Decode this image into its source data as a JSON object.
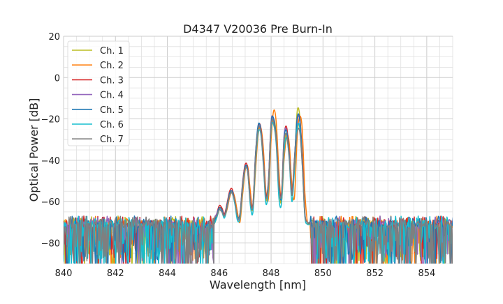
{
  "chart_data": {
    "type": "line",
    "title": "D4347 V20036 Pre Burn-In",
    "xlabel": "Wavelength [nm]",
    "ylabel": "Optical Power [dB]",
    "xlim": [
      840,
      855
    ],
    "ylim": [
      -90,
      20
    ],
    "xticks": [
      840,
      842,
      844,
      846,
      848,
      850,
      852,
      854
    ],
    "yticks": [
      20,
      0,
      -20,
      -40,
      -60,
      -80
    ],
    "grid": true,
    "minor_grid": true,
    "legend_placement": "top-left",
    "noise_floor_db": -70,
    "x": [
      845.8,
      845.9,
      846.0,
      846.1,
      846.2,
      846.3,
      846.4,
      846.5,
      846.6,
      846.7,
      846.8,
      846.9,
      847.0,
      847.1,
      847.2,
      847.3,
      847.4,
      847.5,
      847.6,
      847.7,
      847.8,
      847.9,
      848.0,
      848.1,
      848.2,
      848.3,
      848.4,
      848.5,
      848.6,
      848.7,
      848.8,
      848.9,
      849.0,
      849.1,
      849.2,
      849.3,
      849.4,
      849.5
    ],
    "series": [
      {
        "name": "Ch. 1",
        "color": "#bcbd22",
        "values": [
          -70,
          -67,
          -63,
          -64,
          -67,
          -62,
          -57,
          -55,
          -60,
          -68,
          -67,
          -53,
          -44,
          -45,
          -60,
          -63,
          -40,
          -26,
          -25,
          -40,
          -59,
          -52,
          -24,
          -20,
          -28,
          -52,
          -60,
          -34,
          -27,
          -37,
          -57,
          -42,
          -17,
          -18,
          -38,
          -66,
          -70,
          -71
        ]
      },
      {
        "name": "Ch. 2",
        "color": "#ff7f0e",
        "values": [
          -71,
          -68,
          -64,
          -63,
          -67,
          -64,
          -58,
          -55,
          -58,
          -65,
          -70,
          -57,
          -45,
          -43,
          -55,
          -64,
          -45,
          -28,
          -24,
          -34,
          -55,
          -58,
          -30,
          -16,
          -22,
          -45,
          -60,
          -40,
          -28,
          -32,
          -52,
          -58,
          -30,
          -19,
          -25,
          -55,
          -70,
          -71
        ]
      },
      {
        "name": "Ch. 3",
        "color": "#d62728",
        "values": [
          -69,
          -66,
          -62,
          -63,
          -66,
          -61,
          -55,
          -54,
          -60,
          -67,
          -66,
          -51,
          -42,
          -44,
          -59,
          -61,
          -37,
          -24,
          -24,
          -39,
          -57,
          -49,
          -22,
          -20,
          -30,
          -51,
          -56,
          -29,
          -24,
          -37,
          -55,
          -39,
          -22,
          -19,
          -37,
          -65,
          -70,
          -70
        ]
      },
      {
        "name": "Ch. 4",
        "color": "#9467bd",
        "values": [
          -70,
          -66,
          -63,
          -64,
          -67,
          -62,
          -56,
          -55,
          -60,
          -68,
          -67,
          -52,
          -43,
          -45,
          -60,
          -62,
          -38,
          -25,
          -25,
          -40,
          -58,
          -50,
          -21,
          -21,
          -30,
          -52,
          -57,
          -28,
          -26,
          -38,
          -56,
          -40,
          -21,
          -20,
          -40,
          -66,
          -70,
          -70
        ]
      },
      {
        "name": "Ch. 5",
        "color": "#1f77b4",
        "values": [
          -70,
          -67,
          -63,
          -64,
          -67,
          -62,
          -56,
          -55,
          -60,
          -67,
          -66,
          -52,
          -43,
          -45,
          -60,
          -62,
          -37,
          -23,
          -25,
          -40,
          -58,
          -50,
          -22,
          -20,
          -30,
          -52,
          -58,
          -30,
          -26,
          -38,
          -57,
          -40,
          -20,
          -20,
          -40,
          -66,
          -70,
          -70
        ]
      },
      {
        "name": "Ch. 6",
        "color": "#17becf",
        "values": [
          -71,
          -68,
          -64,
          -65,
          -68,
          -63,
          -57,
          -56,
          -61,
          -69,
          -68,
          -54,
          -44,
          -46,
          -62,
          -65,
          -41,
          -27,
          -27,
          -42,
          -61,
          -53,
          -25,
          -23,
          -33,
          -58,
          -61,
          -36,
          -29,
          -40,
          -60,
          -45,
          -25,
          -24,
          -42,
          -67,
          -71,
          -71
        ]
      },
      {
        "name": "Ch. 7",
        "color": "#7f7f7f",
        "values": [
          -70,
          -67,
          -64,
          -65,
          -67,
          -63,
          -57,
          -56,
          -60,
          -67,
          -67,
          -53,
          -44,
          -46,
          -60,
          -62,
          -39,
          -25,
          -26,
          -41,
          -58,
          -51,
          -23,
          -22,
          -31,
          -53,
          -57,
          -31,
          -28,
          -39,
          -57,
          -41,
          -27,
          -26,
          -42,
          -66,
          -70,
          -70
        ]
      }
    ]
  }
}
